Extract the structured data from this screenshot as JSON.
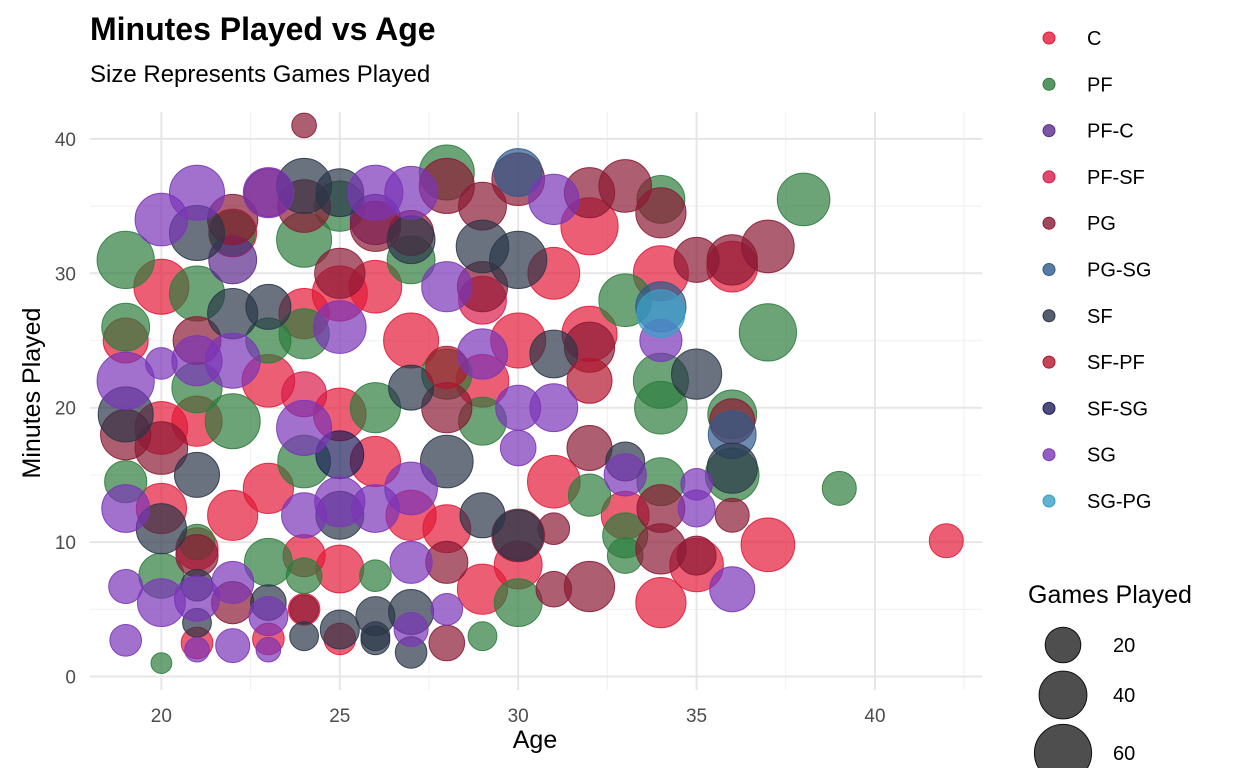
{
  "chart_data": {
    "type": "scatter",
    "title": "Minutes Played vs Age",
    "subtitle": "Size Represents Games Played",
    "xlabel": "Age",
    "ylabel": "Minutes Played",
    "xlim": [
      18,
      43
    ],
    "ylim": [
      -1,
      42
    ],
    "xticks": [
      20,
      25,
      30,
      35,
      40
    ],
    "yticks": [
      0,
      10,
      20,
      30,
      40
    ],
    "grid": true,
    "legend_position": "right",
    "size_legend": {
      "title": "Games Played",
      "values": [
        20,
        40,
        60
      ]
    },
    "series": [
      {
        "name": "C",
        "color": "#E31A38",
        "points": [
          [
            42,
            10.1,
            18
          ],
          [
            37,
            9.8,
            52
          ],
          [
            36,
            30.5,
            46
          ],
          [
            35,
            8.3,
            52
          ],
          [
            34,
            30,
            55
          ],
          [
            34,
            5.5,
            45
          ],
          [
            33,
            12,
            40
          ],
          [
            32,
            33.5,
            60
          ],
          [
            32,
            25.5,
            55
          ],
          [
            31,
            14.5,
            50
          ],
          [
            31,
            30,
            48
          ],
          [
            30,
            25,
            55
          ],
          [
            30,
            8.3,
            40
          ],
          [
            29,
            6.5,
            45
          ],
          [
            29,
            22,
            50
          ],
          [
            28,
            11,
            40
          ],
          [
            27,
            25,
            55
          ],
          [
            27,
            12,
            45
          ],
          [
            26,
            29,
            50
          ],
          [
            26,
            16,
            45
          ],
          [
            25,
            28.5,
            55
          ],
          [
            25,
            19.5,
            50
          ],
          [
            25,
            8,
            40
          ],
          [
            25,
            2.8,
            15
          ],
          [
            24,
            27,
            45
          ],
          [
            24,
            9,
            30
          ],
          [
            24,
            5,
            15
          ],
          [
            23,
            2.8,
            15
          ],
          [
            23,
            14,
            45
          ],
          [
            23,
            22,
            50
          ],
          [
            22,
            12,
            45
          ],
          [
            22,
            33,
            40
          ],
          [
            21,
            19,
            45
          ],
          [
            21,
            9.5,
            30
          ],
          [
            21,
            2.5,
            15
          ],
          [
            20,
            29,
            55
          ],
          [
            20,
            12.5,
            45
          ],
          [
            19,
            25,
            35
          ],
          [
            20,
            18.5,
            50
          ]
        ]
      },
      {
        "name": "PF",
        "color": "#2E7D3E",
        "points": [
          [
            38,
            35.5,
            50
          ],
          [
            37,
            25.6,
            60
          ],
          [
            39,
            14,
            18
          ],
          [
            36,
            19.5,
            42
          ],
          [
            36,
            15,
            52
          ],
          [
            34,
            35.5,
            40
          ],
          [
            34,
            22,
            55
          ],
          [
            34,
            20,
            50
          ],
          [
            34,
            14.5,
            40
          ],
          [
            33,
            28,
            50
          ],
          [
            33,
            10.5,
            35
          ],
          [
            33,
            9,
            20
          ],
          [
            32,
            13.5,
            30
          ],
          [
            30,
            5.5,
            40
          ],
          [
            29,
            3,
            12
          ],
          [
            29,
            19,
            40
          ],
          [
            28,
            37.5,
            55
          ],
          [
            28,
            22.5,
            45
          ],
          [
            27,
            31,
            40
          ],
          [
            26,
            20,
            45
          ],
          [
            26,
            7.5,
            15
          ],
          [
            25,
            35,
            45
          ],
          [
            24,
            32.5,
            55
          ],
          [
            24,
            25.5,
            45
          ],
          [
            24,
            16,
            50
          ],
          [
            24,
            7.5,
            20
          ],
          [
            23,
            25,
            35
          ],
          [
            23,
            8.5,
            40
          ],
          [
            22,
            33,
            35
          ],
          [
            22,
            19,
            55
          ],
          [
            21,
            28.5,
            55
          ],
          [
            21,
            21.5,
            45
          ],
          [
            21,
            10,
            20
          ],
          [
            20,
            1,
            5
          ],
          [
            19,
            31,
            60
          ],
          [
            19,
            26,
            40
          ],
          [
            19,
            14.5,
            30
          ],
          [
            20,
            7.5,
            35
          ]
        ]
      },
      {
        "name": "PF-C",
        "color": "#5B2A8C",
        "points": [
          [
            22,
            31,
            40
          ],
          [
            26,
            34,
            45
          ]
        ]
      },
      {
        "name": "PF-SF",
        "color": "#D81B4A",
        "points": [
          [
            29,
            28,
            40
          ],
          [
            24,
            21,
            35
          ]
        ]
      },
      {
        "name": "PG",
        "color": "#8B1A35",
        "points": [
          [
            37,
            32,
            50
          ],
          [
            36,
            31,
            45
          ],
          [
            36,
            19,
            35
          ],
          [
            36,
            12,
            18
          ],
          [
            35,
            31,
            35
          ],
          [
            35,
            9,
            25
          ],
          [
            34,
            34.5,
            45
          ],
          [
            34,
            12.5,
            40
          ],
          [
            34,
            9.5,
            45
          ],
          [
            33,
            36.5,
            50
          ],
          [
            32,
            6.7,
            45
          ],
          [
            32,
            36,
            45
          ],
          [
            32,
            24.5,
            45
          ],
          [
            32,
            17,
            35
          ],
          [
            31,
            11,
            15
          ],
          [
            31,
            6.5,
            20
          ],
          [
            30,
            37,
            50
          ],
          [
            30,
            10.5,
            50
          ],
          [
            29,
            35,
            40
          ],
          [
            29,
            29,
            45
          ],
          [
            28,
            36.5,
            55
          ],
          [
            28,
            20,
            45
          ],
          [
            28,
            8.5,
            30
          ],
          [
            28,
            2.5,
            20
          ],
          [
            27,
            33,
            35
          ],
          [
            26,
            33.5,
            45
          ],
          [
            25,
            30,
            45
          ],
          [
            24,
            41,
            8
          ],
          [
            24,
            35,
            50
          ],
          [
            24,
            5,
            12
          ],
          [
            23,
            36,
            40
          ],
          [
            22,
            34,
            45
          ],
          [
            22,
            5.5,
            30
          ],
          [
            21,
            25,
            40
          ],
          [
            21,
            9,
            30
          ],
          [
            20,
            17,
            50
          ],
          [
            19,
            18,
            45
          ]
        ]
      },
      {
        "name": "PG-SG",
        "color": "#2E5A8C",
        "points": [
          [
            36,
            18,
            40
          ],
          [
            34,
            27.5,
            45
          ],
          [
            30,
            37.5,
            40
          ]
        ]
      },
      {
        "name": "SF",
        "color": "#2B3648",
        "points": [
          [
            36,
            15.5,
            45
          ],
          [
            35,
            22.5,
            45
          ],
          [
            33,
            16,
            25
          ],
          [
            31,
            24,
            40
          ],
          [
            30,
            31,
            60
          ],
          [
            30,
            10.5,
            45
          ],
          [
            29,
            32,
            50
          ],
          [
            29,
            12,
            35
          ],
          [
            28,
            16,
            50
          ],
          [
            27,
            32.5,
            40
          ],
          [
            27,
            21.5,
            35
          ],
          [
            27,
            4.8,
            35
          ],
          [
            27,
            1.8,
            15
          ],
          [
            26,
            4.5,
            25
          ],
          [
            26,
            3,
            12
          ],
          [
            26,
            2.7,
            12
          ],
          [
            25,
            36,
            40
          ],
          [
            25,
            12,
            40
          ],
          [
            25,
            3.5,
            25
          ],
          [
            24,
            36.5,
            55
          ],
          [
            24,
            3,
            12
          ],
          [
            23,
            5.5,
            20
          ],
          [
            23,
            27.5,
            35
          ],
          [
            22,
            27,
            45
          ],
          [
            21,
            33,
            55
          ],
          [
            21,
            15,
            35
          ],
          [
            21,
            6.8,
            15
          ],
          [
            21,
            4,
            12
          ],
          [
            20,
            11,
            45
          ],
          [
            19,
            19.5,
            55
          ]
        ]
      },
      {
        "name": "SF-PF",
        "color": "#B3162E",
        "points": [
          [
            32,
            22,
            35
          ],
          [
            28,
            23,
            30
          ]
        ]
      },
      {
        "name": "SF-SG",
        "color": "#1F1F5C",
        "points": [
          [
            25,
            16.5,
            40
          ]
        ]
      },
      {
        "name": "SG",
        "color": "#7B35B8",
        "points": [
          [
            36,
            6.5,
            35
          ],
          [
            35,
            14.3,
            15
          ],
          [
            35,
            12.5,
            22
          ],
          [
            34,
            25,
            30
          ],
          [
            33,
            15,
            30
          ],
          [
            31,
            35.5,
            45
          ],
          [
            31,
            20,
            40
          ],
          [
            30,
            20,
            35
          ],
          [
            30,
            17,
            20
          ],
          [
            29,
            24,
            45
          ],
          [
            28,
            29,
            45
          ],
          [
            28,
            5,
            15
          ],
          [
            27,
            36,
            50
          ],
          [
            27,
            14,
            50
          ],
          [
            27,
            8.5,
            30
          ],
          [
            27,
            3.5,
            18
          ],
          [
            26,
            36,
            55
          ],
          [
            26,
            12.5,
            40
          ],
          [
            25,
            26,
            50
          ],
          [
            25,
            13,
            45
          ],
          [
            24,
            18.5,
            55
          ],
          [
            24,
            12,
            35
          ],
          [
            23,
            36,
            45
          ],
          [
            23,
            4.5,
            25
          ],
          [
            23,
            2,
            8
          ],
          [
            22,
            23.5,
            55
          ],
          [
            22,
            7,
            30
          ],
          [
            22,
            2.3,
            18
          ],
          [
            21,
            36,
            55
          ],
          [
            21,
            23.5,
            45
          ],
          [
            21,
            5.8,
            35
          ],
          [
            21,
            2,
            8
          ],
          [
            20,
            34,
            50
          ],
          [
            20,
            5.5,
            40
          ],
          [
            20,
            23.3,
            15
          ],
          [
            19,
            22,
            60
          ],
          [
            19,
            12.5,
            40
          ],
          [
            19,
            6.7,
            18
          ],
          [
            19,
            2.7,
            15
          ]
        ]
      },
      {
        "name": "SG-PG",
        "color": "#3AA0C7",
        "points": [
          [
            34,
            27,
            40
          ]
        ]
      }
    ]
  }
}
